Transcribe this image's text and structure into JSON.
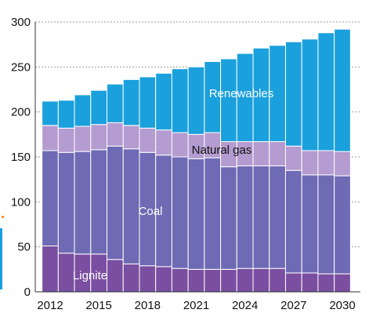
{
  "chart_data": {
    "type": "bar",
    "stacked": true,
    "title": "",
    "xlabel": "",
    "ylabel": "",
    "ylim": [
      0,
      300
    ],
    "grid": true,
    "legend": "inline",
    "categories": [
      "2012",
      "2013",
      "2014",
      "2015",
      "2016",
      "2017",
      "2018",
      "2019",
      "2020",
      "2021",
      "2022",
      "2023",
      "2024",
      "2025",
      "2026",
      "2027",
      "2028",
      "2029",
      "2030"
    ],
    "x_tick_labels": [
      "2012",
      "2015",
      "2018",
      "2021",
      "2024",
      "2027",
      "2030"
    ],
    "y_tick_labels": [
      "0",
      "50",
      "100",
      "150",
      "200",
      "250",
      "300"
    ],
    "series": [
      {
        "name": "Lignite",
        "color": "#7a4ea0",
        "values": [
          51,
          43,
          42,
          42,
          36,
          31,
          29,
          28,
          26,
          25,
          25,
          25,
          26,
          26,
          26,
          21,
          21,
          20,
          20
        ]
      },
      {
        "name": "Coal",
        "color": "#6e6ab4",
        "values": [
          106,
          112,
          114,
          116,
          126,
          128,
          126,
          124,
          124,
          123,
          124,
          114,
          114,
          114,
          114,
          114,
          109,
          110,
          109
        ]
      },
      {
        "name": "Natural gas",
        "color": "#b49bd0",
        "values": [
          28,
          27,
          28,
          28,
          26,
          26,
          27,
          28,
          27,
          27,
          28,
          28,
          27,
          27,
          27,
          27,
          27,
          27,
          27
        ]
      },
      {
        "name": "Renewables",
        "color": "#1aa0dc",
        "values": [
          27,
          31,
          35,
          38,
          43,
          51,
          57,
          63,
          71,
          75,
          79,
          92,
          98,
          104,
          107,
          116,
          124,
          131,
          136
        ]
      }
    ]
  }
}
